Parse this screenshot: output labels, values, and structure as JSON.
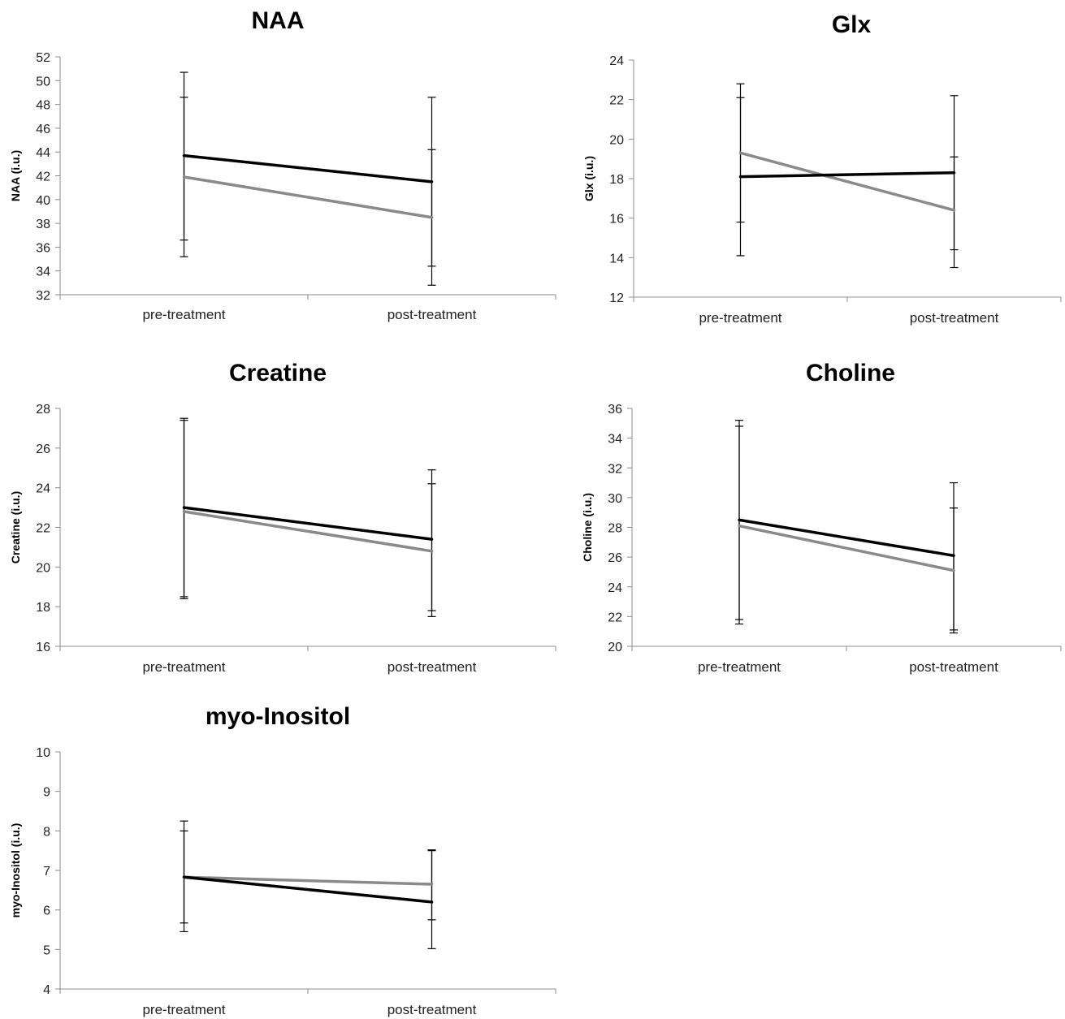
{
  "colors": {
    "series_black": "#000000",
    "series_gray": "#8a8a8a"
  },
  "chart_data": [
    {
      "type": "line",
      "title": "NAA",
      "ylabel": "NAA (i.u.)",
      "categories": [
        "pre-treatment",
        "post-treatment"
      ],
      "ylim": [
        32,
        52
      ],
      "yticks": [
        32,
        34,
        36,
        38,
        40,
        42,
        44,
        46,
        48,
        50,
        52
      ],
      "grid": false,
      "series": [
        {
          "color": "#000000",
          "values": [
            43.7,
            41.5
          ],
          "err_low": [
            36.6,
            34.4
          ],
          "err_high": [
            50.7,
            48.6
          ]
        },
        {
          "color": "#8a8a8a",
          "values": [
            41.9,
            38.5
          ],
          "err_low": [
            35.2,
            32.8
          ],
          "err_high": [
            48.6,
            44.2
          ]
        }
      ]
    },
    {
      "type": "line",
      "title": "Glx",
      "ylabel": "Glx (i.u.)",
      "categories": [
        "pre-treatment",
        "post-treatment"
      ],
      "ylim": [
        12,
        24
      ],
      "yticks": [
        12,
        14,
        16,
        18,
        20,
        22,
        24
      ],
      "grid": false,
      "series": [
        {
          "color": "#000000",
          "values": [
            18.1,
            18.3
          ],
          "err_low": [
            14.1,
            14.4
          ],
          "err_high": [
            22.1,
            22.2
          ]
        },
        {
          "color": "#8a8a8a",
          "values": [
            19.3,
            16.4
          ],
          "err_low": [
            15.8,
            13.5
          ],
          "err_high": [
            22.8,
            19.1
          ]
        }
      ]
    },
    {
      "type": "line",
      "title": "Creatine",
      "ylabel": "Creatine (i.u.)",
      "categories": [
        "pre-treatment",
        "post-treatment"
      ],
      "ylim": [
        16,
        28
      ],
      "yticks": [
        16,
        18,
        20,
        22,
        24,
        26,
        28
      ],
      "grid": false,
      "series": [
        {
          "color": "#000000",
          "values": [
            23.0,
            21.4
          ],
          "err_low": [
            18.5,
            17.8
          ],
          "err_high": [
            27.5,
            24.9
          ]
        },
        {
          "color": "#8a8a8a",
          "values": [
            22.8,
            20.8
          ],
          "err_low": [
            18.4,
            17.5
          ],
          "err_high": [
            27.4,
            24.2
          ]
        }
      ]
    },
    {
      "type": "line",
      "title": "Choline",
      "ylabel": "Choline (i.u.)",
      "categories": [
        "pre-treatment",
        "post-treatment"
      ],
      "ylim": [
        20,
        36
      ],
      "yticks": [
        20,
        22,
        24,
        26,
        28,
        30,
        32,
        34,
        36
      ],
      "grid": false,
      "series": [
        {
          "color": "#000000",
          "values": [
            28.5,
            26.1
          ],
          "err_low": [
            21.8,
            21.1
          ],
          "err_high": [
            35.2,
            31.0
          ]
        },
        {
          "color": "#8a8a8a",
          "values": [
            28.1,
            25.1
          ],
          "err_low": [
            21.5,
            20.9
          ],
          "err_high": [
            34.8,
            29.3
          ]
        }
      ]
    },
    {
      "type": "line",
      "title": "myo-Inositol",
      "ylabel": "myo-Inositol (i.u.)",
      "categories": [
        "pre-treatment",
        "post-treatment"
      ],
      "ylim": [
        4,
        10
      ],
      "yticks": [
        4,
        5,
        6,
        7,
        8,
        9,
        10
      ],
      "grid": false,
      "series": [
        {
          "color": "#000000",
          "values": [
            6.83,
            6.2
          ],
          "err_low": [
            5.45,
            5.02
          ],
          "err_high": [
            8.25,
            7.5
          ]
        },
        {
          "color": "#8a8a8a",
          "values": [
            6.83,
            6.65
          ],
          "err_low": [
            5.67,
            5.75
          ],
          "err_high": [
            8.0,
            7.52
          ]
        }
      ]
    }
  ]
}
